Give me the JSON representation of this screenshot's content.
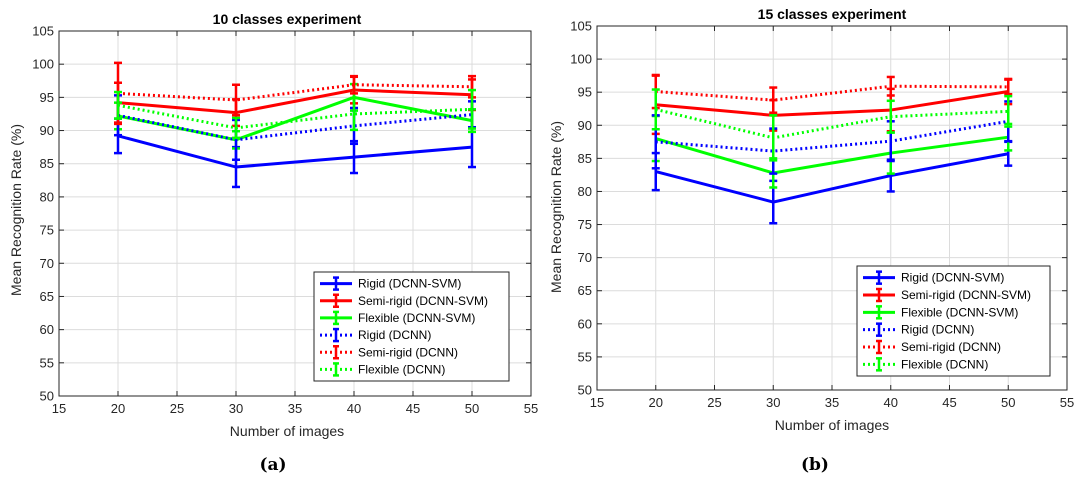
{
  "chart_data": [
    {
      "type": "line",
      "title": "10 classes experiment",
      "xlabel": "Number of images",
      "ylabel": "Mean Recognition Rate (%)",
      "caption": "(a)",
      "xlim": [
        15,
        55
      ],
      "ylim": [
        50,
        105
      ],
      "xticks": [
        15,
        20,
        25,
        30,
        35,
        40,
        45,
        50,
        55
      ],
      "yticks": [
        50,
        55,
        60,
        65,
        70,
        75,
        80,
        85,
        90,
        95,
        100,
        105
      ],
      "grid": true,
      "legend_position": "bottom-right",
      "x": [
        20,
        30,
        40,
        50
      ],
      "series": [
        {
          "name": "Rigid (DCNN-SVM)",
          "color": "#0000ff",
          "style": "solid",
          "values": [
            89.2,
            84.5,
            86.0,
            87.5
          ],
          "errors": [
            2.6,
            3.0,
            2.4,
            3.0
          ]
        },
        {
          "name": "Semi-rigid (DCNN-SVM)",
          "color": "#ff0000",
          "style": "solid",
          "values": [
            94.2,
            92.7,
            96.1,
            95.4
          ],
          "errors": [
            3.0,
            2.0,
            2.0,
            2.3
          ]
        },
        {
          "name": "Flexible (DCNN-SVM)",
          "color": "#00ff00",
          "style": "solid",
          "values": [
            92.2,
            88.6,
            95.0,
            91.5
          ],
          "errors": [
            2.0,
            1.3,
            2.0,
            1.7
          ]
        },
        {
          "name": "Rigid (DCNN)",
          "color": "#0000ff",
          "style": "dotted",
          "values": [
            92.3,
            88.6,
            90.7,
            92.4
          ],
          "errors": [
            3.0,
            3.0,
            2.7,
            2.0
          ]
        },
        {
          "name": "Semi-rigid (DCNN)",
          "color": "#ff0000",
          "style": "dotted",
          "values": [
            95.6,
            94.6,
            96.9,
            96.6
          ],
          "errors": [
            4.6,
            2.3,
            1.3,
            1.6
          ]
        },
        {
          "name": "Flexible (DCNN)",
          "color": "#00ff00",
          "style": "dotted",
          "values": [
            93.8,
            90.4,
            92.5,
            93.2
          ],
          "errors": [
            2.0,
            1.5,
            2.4,
            2.9
          ]
        }
      ]
    },
    {
      "type": "line",
      "title": "15 classes experiment",
      "xlabel": "Number of images",
      "ylabel": "Mean Recognition Rate (%)",
      "caption": "(b)",
      "xlim": [
        15,
        55
      ],
      "ylim": [
        50,
        105
      ],
      "xticks": [
        15,
        20,
        25,
        30,
        35,
        40,
        45,
        50,
        55
      ],
      "yticks": [
        50,
        55,
        60,
        65,
        70,
        75,
        80,
        85,
        90,
        95,
        100,
        105
      ],
      "grid": true,
      "legend_position": "bottom-right",
      "x": [
        20,
        30,
        40,
        50
      ],
      "series": [
        {
          "name": "Rigid (DCNN-SVM)",
          "color": "#0000ff",
          "style": "solid",
          "values": [
            83.0,
            78.4,
            82.4,
            85.7
          ],
          "errors": [
            2.8,
            3.2,
            2.4,
            1.8
          ]
        },
        {
          "name": "Semi-rigid (DCNN-SVM)",
          "color": "#ff0000",
          "style": "solid",
          "values": [
            93.1,
            91.5,
            92.3,
            95.1
          ],
          "errors": [
            4.4,
            2.3,
            3.2,
            1.9
          ]
        },
        {
          "name": "Flexible (DCNN-SVM)",
          "color": "#00ff00",
          "style": "solid",
          "values": [
            88.0,
            82.8,
            85.8,
            88.2
          ],
          "errors": [
            3.4,
            2.2,
            3.1,
            2.0
          ]
        },
        {
          "name": "Rigid (DCNN)",
          "color": "#0000ff",
          "style": "dotted",
          "values": [
            87.5,
            86.1,
            87.6,
            90.6
          ],
          "errors": [
            4.0,
            3.4,
            3.0,
            3.0
          ]
        },
        {
          "name": "Semi-rigid (DCNN)",
          "color": "#ff0000",
          "style": "dotted",
          "values": [
            95.1,
            93.8,
            95.9,
            95.8
          ],
          "errors": [
            2.5,
            1.9,
            1.4,
            1.1
          ]
        },
        {
          "name": "Flexible (DCNN)",
          "color": "#00ff00",
          "style": "dotted",
          "values": [
            92.4,
            88.1,
            91.3,
            92.1
          ],
          "errors": [
            3.0,
            3.4,
            2.4,
            2.3
          ]
        }
      ]
    }
  ]
}
